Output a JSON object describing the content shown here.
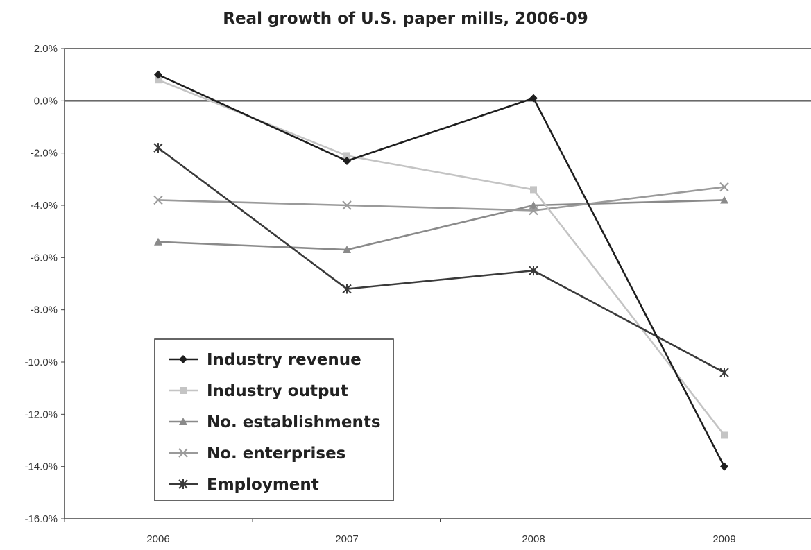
{
  "chart_data": {
    "type": "line",
    "title": "Real growth of U.S. paper mills, 2006-09",
    "xlabel": "",
    "ylabel": "",
    "categories": [
      "2006",
      "2007",
      "2008",
      "2009"
    ],
    "ylim": [
      -16,
      2
    ],
    "yticks": [
      2,
      0,
      -2,
      -4,
      -6,
      -8,
      -10,
      -12,
      -14,
      -16
    ],
    "ytick_labels": [
      "2.0%",
      "0.0%",
      "-2.0%",
      "-4.0%",
      "-6.0%",
      "-8.0%",
      "-10.0%",
      "-12.0%",
      "-14.0%",
      "-16.0%"
    ],
    "reference_line": 0,
    "grid": false,
    "legend_position": "bottom-left",
    "series": [
      {
        "name": "Industry revenue",
        "values": [
          1.0,
          -2.3,
          0.1,
          -14.0
        ],
        "color": "#1e1e1e",
        "marker": "diamond"
      },
      {
        "name": "Industry output",
        "values": [
          0.8,
          -2.1,
          -3.4,
          -12.8
        ],
        "color": "#c4c4c4",
        "marker": "square"
      },
      {
        "name": "No. establishments",
        "values": [
          -5.4,
          -5.7,
          -4.0,
          -3.8
        ],
        "color": "#8a8a8a",
        "marker": "triangle"
      },
      {
        "name": "No. enterprises",
        "values": [
          -3.8,
          -4.0,
          -4.2,
          -3.3
        ],
        "color": "#9a9a9a",
        "marker": "x"
      },
      {
        "name": "Employment",
        "values": [
          -1.8,
          -7.2,
          -6.5,
          -10.4
        ],
        "color": "#3a3a3a",
        "marker": "star"
      }
    ]
  }
}
